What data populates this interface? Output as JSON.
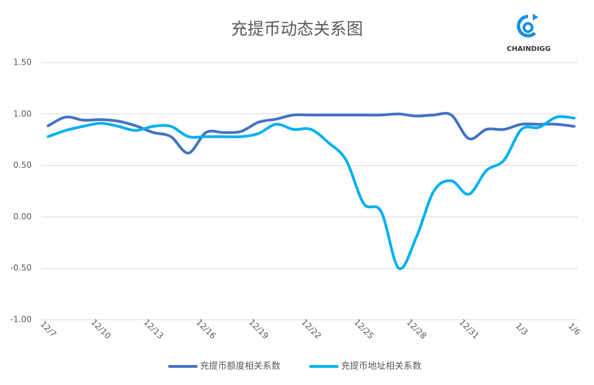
{
  "chart_data": {
    "type": "line",
    "title": "充提币动态关系图",
    "logo": "CHAINDIGG",
    "categories": [
      "12/7",
      null,
      null,
      "12/10",
      null,
      null,
      "12/13",
      null,
      null,
      "12/16",
      null,
      null,
      "12/19",
      null,
      null,
      "12/22",
      null,
      null,
      "12/25",
      null,
      null,
      "12/28",
      null,
      null,
      "12/31",
      null,
      null,
      "1/3",
      null,
      null,
      "1/6"
    ],
    "series": [
      {
        "name": "充提币额度相关系数",
        "color": "#4472c4",
        "values": [
          0.885,
          0.97,
          0.94,
          0.945,
          0.93,
          0.885,
          0.82,
          0.78,
          0.62,
          0.82,
          0.82,
          0.83,
          0.92,
          0.95,
          0.99,
          0.99,
          0.99,
          0.99,
          0.99,
          0.99,
          1.0,
          0.98,
          0.99,
          0.99,
          0.76,
          0.85,
          0.85,
          0.9,
          0.9,
          0.9,
          0.88
        ]
      },
      {
        "name": "充提币地址相关系数",
        "color": "#00b0f0",
        "values": [
          0.78,
          0.84,
          0.88,
          0.91,
          0.88,
          0.84,
          0.88,
          0.88,
          0.78,
          0.78,
          0.78,
          0.78,
          0.81,
          0.9,
          0.85,
          0.85,
          0.72,
          0.55,
          0.13,
          0.05,
          -0.5,
          -0.2,
          0.25,
          0.35,
          0.22,
          0.45,
          0.55,
          0.85,
          0.87,
          0.97,
          0.96
        ]
      }
    ],
    "ylim": [
      -1,
      1.5
    ],
    "yticks": [
      {
        "value": -1,
        "label": "-1.00"
      },
      {
        "value": -0.5,
        "label": "-0.50"
      },
      {
        "value": 0,
        "label": "0.00"
      },
      {
        "value": 0.5,
        "label": "0.50"
      },
      {
        "value": 1,
        "label": "1.00"
      },
      {
        "value": 1.5,
        "label": "1.50"
      }
    ],
    "grid": true,
    "legend": "bottom"
  }
}
